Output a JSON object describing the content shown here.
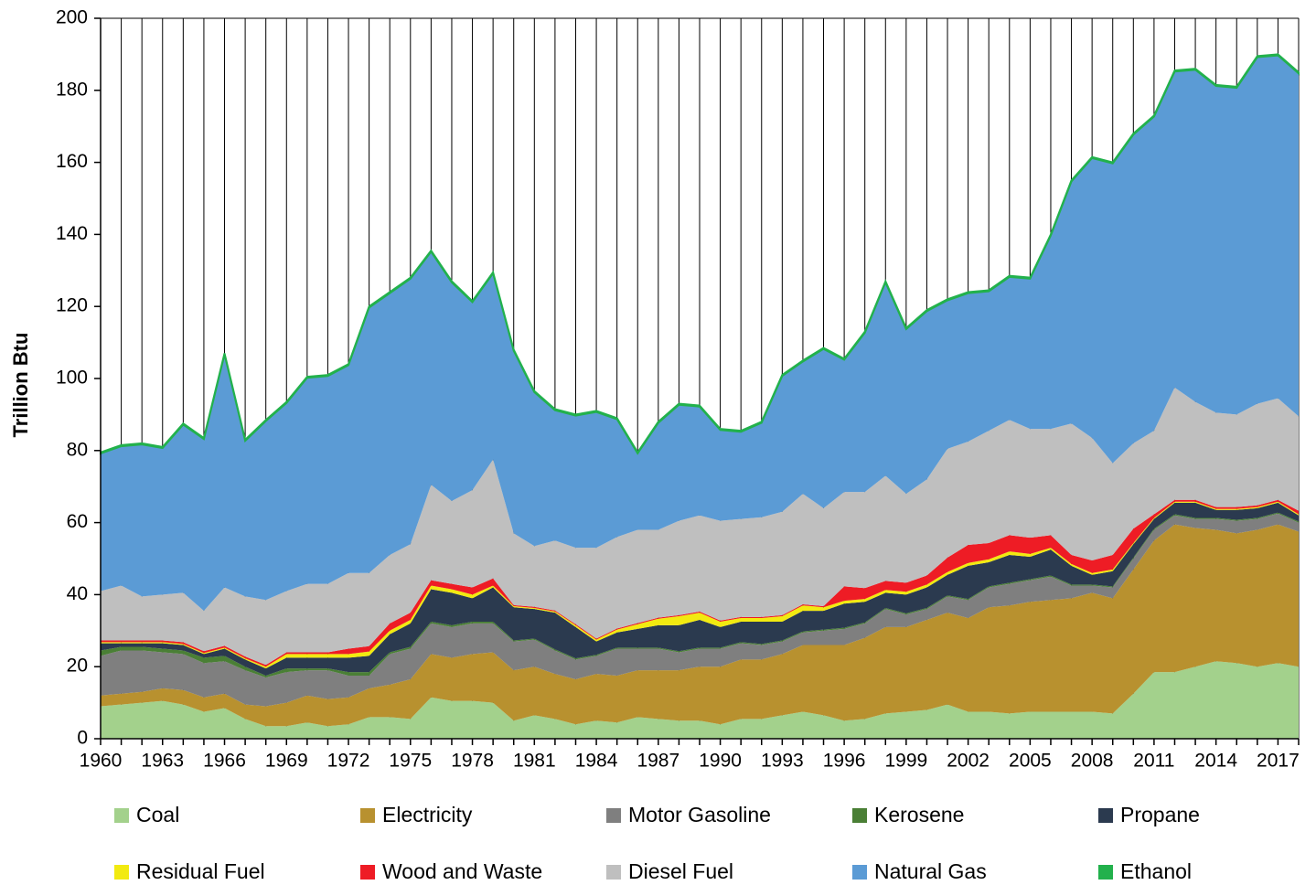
{
  "chart_data": {
    "type": "stacked_area",
    "y_label": "Trillion Btu",
    "x": [
      1960,
      1961,
      1962,
      1963,
      1964,
      1965,
      1966,
      1967,
      1968,
      1969,
      1970,
      1971,
      1972,
      1973,
      1974,
      1975,
      1976,
      1977,
      1978,
      1979,
      1980,
      1981,
      1982,
      1983,
      1984,
      1985,
      1986,
      1987,
      1988,
      1989,
      1990,
      1991,
      1992,
      1993,
      1994,
      1995,
      1996,
      1997,
      1998,
      1999,
      2000,
      2001,
      2002,
      2003,
      2004,
      2005,
      2006,
      2007,
      2008,
      2009,
      2010,
      2011,
      2012,
      2013,
      2014,
      2015,
      2016,
      2017,
      2018
    ],
    "xlim": [
      1960,
      2018
    ],
    "xticks": [
      1960,
      1963,
      1966,
      1969,
      1972,
      1975,
      1978,
      1981,
      1984,
      1987,
      1990,
      1993,
      1996,
      1999,
      2002,
      2005,
      2008,
      2011,
      2014,
      2017
    ],
    "ylim": [
      0,
      200
    ],
    "yticks": [
      0,
      20,
      40,
      60,
      80,
      100,
      120,
      140,
      160,
      180,
      200
    ],
    "grid": "x",
    "legend": "bottom",
    "series": [
      {
        "name": "Coal",
        "color": "#a3d18c",
        "values": [
          9,
          9.5,
          10,
          10.5,
          9.5,
          7.5,
          8.5,
          5.5,
          3.5,
          3.5,
          4.5,
          3.5,
          4,
          6,
          6,
          5.5,
          11.5,
          10.5,
          10.5,
          10,
          5,
          6.5,
          5.5,
          4,
          5,
          4.5,
          6,
          5.5,
          5,
          5,
          4,
          5.5,
          5.5,
          6.5,
          7.5,
          6.5,
          5,
          5.5,
          7,
          7.5,
          8,
          9.5,
          7.5,
          7.5,
          7,
          7.5,
          7.5,
          7.5,
          7.5,
          7,
          12.5,
          18.5,
          18.5,
          20,
          21.5,
          21,
          20,
          21,
          20
        ]
      },
      {
        "name": "Electricity",
        "color": "#b8912f",
        "values": [
          3,
          3,
          3,
          3.5,
          4,
          4,
          4,
          4,
          5.5,
          6.5,
          7.5,
          7.5,
          7.5,
          8,
          9,
          11,
          12,
          12,
          13,
          14,
          14,
          13.5,
          12.5,
          12.5,
          13,
          13,
          13,
          13.5,
          14,
          15,
          16,
          16.5,
          16.5,
          17,
          18.5,
          19.5,
          21,
          22.5,
          24,
          23.5,
          25,
          25.5,
          26,
          29,
          30,
          30.5,
          31,
          31.5,
          33,
          32,
          34.5,
          36.5,
          41,
          38.5,
          36.5,
          36,
          38,
          38.5,
          37.5
        ]
      },
      {
        "name": "Motor Gasoline",
        "color": "#7f7f7f",
        "values": [
          11,
          12,
          11.5,
          10,
          10,
          9.5,
          9,
          9.5,
          8,
          8.5,
          7,
          8,
          6,
          3.5,
          8.5,
          8.5,
          8.5,
          8.5,
          8.5,
          8,
          8,
          7.5,
          6.5,
          5.5,
          5,
          7.5,
          6,
          6,
          5,
          5,
          5,
          4.5,
          4,
          3.5,
          3.5,
          4,
          4.5,
          4,
          5,
          3.5,
          3,
          4.5,
          5,
          5.5,
          6,
          6,
          6.5,
          3.5,
          2,
          3,
          3,
          3,
          2.5,
          2.5,
          3,
          3.5,
          3,
          3,
          2.5
        ]
      },
      {
        "name": "Kerosene",
        "color": "#4a7f35",
        "values": [
          1.5,
          1,
          1,
          1,
          1,
          1.5,
          1.5,
          1,
          0.5,
          1,
          0.5,
          0.5,
          1,
          1,
          0.5,
          0.5,
          0.5,
          0.5,
          0.5,
          0.5,
          0.3,
          0.3,
          0.3,
          0.3,
          0.3,
          0.3,
          0.3,
          0.3,
          0.3,
          0.3,
          0.3,
          0.3,
          0.3,
          0.3,
          0.3,
          0.3,
          0.3,
          0.3,
          0.3,
          0.3,
          0.3,
          0.3,
          0.3,
          0.3,
          0.3,
          0.3,
          0.3,
          0.3,
          0.3,
          0.3,
          0.3,
          0.3,
          0.3,
          0.3,
          0.3,
          0.3,
          0.3,
          0.3,
          0.3
        ]
      },
      {
        "name": "Propane",
        "color": "#2b3a4f",
        "values": [
          2,
          1,
          1,
          1.5,
          1.5,
          1,
          2,
          2,
          2,
          3,
          3,
          3,
          4,
          4.5,
          5,
          6.5,
          9,
          9,
          6.5,
          9.5,
          9.2,
          8.2,
          10.2,
          8.7,
          3.7,
          4.2,
          5.2,
          6.2,
          7.2,
          7.7,
          5.7,
          5.7,
          6.2,
          5.2,
          5.7,
          5.2,
          6.7,
          5.7,
          4.2,
          5.2,
          5.7,
          5.7,
          9.2,
          6.7,
          7.7,
          6.2,
          7.2,
          5.2,
          2.7,
          4.2,
          3.7,
          2.7,
          3.2,
          4.2,
          2.2,
          2.7,
          2.7,
          2.7,
          1.7
        ]
      },
      {
        "name": "Residual Fuel",
        "color": "#f2ea10",
        "values": [
          0.3,
          0.3,
          0.3,
          0.3,
          0.3,
          0.3,
          0.3,
          0.3,
          0.5,
          1,
          1,
          1,
          1,
          1.2,
          1,
          1,
          1,
          1,
          1,
          0.5,
          0.3,
          0.3,
          0.3,
          0.5,
          0.5,
          0.8,
          1.3,
          1.8,
          2.5,
          2,
          1.5,
          1,
          1,
          1.5,
          1.5,
          1,
          0.8,
          0.8,
          0.8,
          0.8,
          0.8,
          0.8,
          0.8,
          0.8,
          1,
          0.8,
          0.5,
          0.5,
          0.5,
          0.5,
          0.3,
          0.3,
          0.3,
          0.3,
          0.3,
          0.3,
          0.3,
          0.3,
          0.3
        ]
      },
      {
        "name": "Wood and Waste",
        "color": "#ee1c25",
        "values": [
          0.5,
          0.5,
          0.5,
          0.5,
          0.5,
          0.5,
          0.5,
          0.5,
          0.5,
          0.5,
          0.5,
          0.5,
          1.5,
          1.5,
          2,
          2,
          1.5,
          1.5,
          2,
          2,
          0.3,
          0.3,
          0.3,
          0.3,
          0.3,
          0.3,
          0.3,
          0.3,
          0.3,
          0.3,
          0.3,
          0.3,
          0.3,
          0.3,
          0.3,
          0.3,
          4,
          3,
          2.5,
          2.5,
          2.5,
          4,
          5,
          4.5,
          4.5,
          4.5,
          3.5,
          2.5,
          3.5,
          4,
          4,
          1,
          0.5,
          0.5,
          0.5,
          0.5,
          0.5,
          0.5,
          1
        ]
      },
      {
        "name": "Diesel Fuel",
        "color": "#bfbfbf",
        "values": [
          13.7,
          15.2,
          12.2,
          12.7,
          13.7,
          11.2,
          16.2,
          16.7,
          18,
          17,
          19,
          19,
          21,
          20.3,
          19,
          19,
          26.5,
          23,
          27,
          33,
          19.9,
          16.9,
          19.4,
          21.2,
          25.2,
          25.4,
          25.9,
          24.4,
          26.2,
          26.7,
          27.7,
          27.2,
          27.7,
          28.7,
          30.7,
          27.2,
          26.2,
          26.7,
          29.2,
          24.7,
          26.7,
          30.2,
          28.7,
          31.2,
          32,
          30.2,
          29.5,
          36.5,
          34,
          25.5,
          23.7,
          23.2,
          31.2,
          27.2,
          26.2,
          25.7,
          28.2,
          28.2,
          26.2
        ]
      },
      {
        "name": "Natural Gas",
        "color": "#5b9bd5",
        "values": [
          38.2,
          38.7,
          42.2,
          40.7,
          46.7,
          47.7,
          64.7,
          43.2,
          49.7,
          52.2,
          57.2,
          57.7,
          57.7,
          73.7,
          72.7,
          73.7,
          64.7,
          60.7,
          52.2,
          51.7,
          50.7,
          42.7,
          36.2,
          36.7,
          37.7,
          32.7,
          21.2,
          29.7,
          32.2,
          30.2,
          25.2,
          24.2,
          26.2,
          37.7,
          36.7,
          44.2,
          36.7,
          44.2,
          53.7,
          45.7,
          46.7,
          41.2,
          41.2,
          38.7,
          39.7,
          41.7,
          53.7,
          67.2,
          77.7,
          83.2,
          85.7,
          87.2,
          87.7,
          92.2,
          90.7,
          90.7,
          96.2,
          95.2,
          95.2
        ]
      },
      {
        "name": "Ethanol",
        "color": "#22b14c",
        "values": [
          0.3,
          0.3,
          0.3,
          0.3,
          0.3,
          0.3,
          0.3,
          0.3,
          0.3,
          0.3,
          0.3,
          0.3,
          0.3,
          0.3,
          0.3,
          0.3,
          0.3,
          0.3,
          0.3,
          0.3,
          0.3,
          0.3,
          0.3,
          0.3,
          0.3,
          0.3,
          0.3,
          0.3,
          0.3,
          0.3,
          0.3,
          0.3,
          0.3,
          0.3,
          0.3,
          0.3,
          0.3,
          0.3,
          0.3,
          0.3,
          0.3,
          0.3,
          0.3,
          0.3,
          0.3,
          0.3,
          0.3,
          0.3,
          0.3,
          0.3,
          0.3,
          0.3,
          0.3,
          0.3,
          0.3,
          0.3,
          0.3,
          0.3,
          0.3
        ]
      }
    ]
  }
}
